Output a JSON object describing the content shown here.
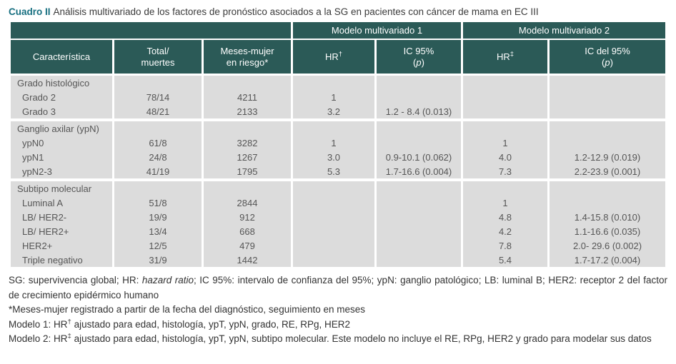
{
  "caption": {
    "label": "Cuadro II",
    "text": "Análisis multivariado de los factores de pronóstico asociados a la SG en pacientes con cáncer de mama en EC III"
  },
  "colors": {
    "header_bg": "#2B5A57",
    "caption_accent": "#176F80",
    "cell_bg": "#DCDCDC",
    "cell_text": "#565656",
    "note_text": "#333333"
  },
  "table": {
    "group_headers": [
      {
        "label": "",
        "span": 3
      },
      {
        "label": "Modelo multivariado 1",
        "span": 2
      },
      {
        "label": "Modelo multivariado 2",
        "span": 2
      }
    ],
    "columns": [
      {
        "name": "caracteristica",
        "lines": [
          [
            {
              "t": "Característica"
            }
          ]
        ]
      },
      {
        "name": "total-muertes",
        "lines": [
          [
            {
              "t": "Total/"
            }
          ],
          [
            {
              "t": "muertes"
            }
          ]
        ]
      },
      {
        "name": "meses-mujer-en-riesgo",
        "lines": [
          [
            {
              "t": "Meses-mujer"
            }
          ],
          [
            {
              "t": "en riesgo*"
            }
          ]
        ]
      },
      {
        "name": "hr-modelo-1",
        "lines": [
          [
            {
              "t": "HR"
            },
            {
              "t": "†",
              "sup": true
            }
          ]
        ]
      },
      {
        "name": "ic95-modelo-1",
        "lines": [
          [
            {
              "t": "IC 95%"
            }
          ],
          [
            {
              "t": "("
            },
            {
              "t": "p",
              "i": true
            },
            {
              "t": ")"
            }
          ]
        ]
      },
      {
        "name": "hr-modelo-2",
        "lines": [
          [
            {
              "t": "HR"
            },
            {
              "t": "‡",
              "sup": true
            }
          ]
        ]
      },
      {
        "name": "ic95-modelo-2",
        "lines": [
          [
            {
              "t": "IC del 95%"
            }
          ],
          [
            {
              "t": "("
            },
            {
              "t": "p",
              "i": true
            },
            {
              "t": ")"
            }
          ]
        ]
      }
    ],
    "sections": [
      {
        "title": "Grado histológico",
        "rows": [
          {
            "cells": [
              "Grado 2",
              "78/14",
              "4211",
              "1",
              "",
              "",
              ""
            ]
          },
          {
            "cells": [
              "Grado 3",
              "48/21",
              "2133",
              "3.2",
              "1.2 - 8.4 (0.013)",
              "",
              ""
            ]
          }
        ]
      },
      {
        "title": "Ganglio axilar (ypN)",
        "rows": [
          {
            "cells": [
              "ypN0",
              "61/8",
              "3282",
              "1",
              "",
              "1",
              ""
            ]
          },
          {
            "cells": [
              "ypN1",
              "24/8",
              "1267",
              "3.0",
              "0.9-10.1 (0.062)",
              "4.0",
              "1.2-12.9 (0.019)"
            ]
          },
          {
            "cells": [
              "ypN2-3",
              "41/19",
              "1795",
              "5.3",
              "1.7-16.6 (0.004)",
              "7.3",
              "2.2-23.9 (0.001)"
            ]
          }
        ]
      },
      {
        "title": "Subtipo molecular",
        "rows": [
          {
            "cells": [
              "Luminal A",
              "51/8",
              "2844",
              "",
              "",
              "1",
              ""
            ]
          },
          {
            "cells": [
              "LB/ HER2-",
              "19/9",
              "912",
              "",
              "",
              "4.8",
              "1.4-15.8 (0.010)"
            ]
          },
          {
            "cells": [
              "LB/ HER2+",
              "13/4",
              "668",
              "",
              "",
              "4.2",
              "1.1-16.6 (0.035)"
            ]
          },
          {
            "cells": [
              "HER2+",
              "12/5",
              "479",
              "",
              "",
              "7.8",
              "2.0- 29.6 (0.002)"
            ]
          },
          {
            "cells": [
              "Triple negativo",
              "31/9",
              "1442",
              "",
              "",
              "5.4",
              "1.7-17.2 (0.004)"
            ]
          }
        ]
      }
    ]
  },
  "notes": [
    {
      "justify": true,
      "segments": [
        {
          "t": "SG: supervivencia global; HR: "
        },
        {
          "t": "hazard ratio",
          "i": true
        },
        {
          "t": "; IC 95%: intervalo de confianza del 95%; ypN: ganglio patológico; LB: luminal B; HER2: receptor 2 del factor de crecimiento epidérmico humano"
        }
      ]
    },
    {
      "segments": [
        {
          "t": "*Meses-mujer registrado a partir de la fecha del diagnóstico, seguimiento en meses"
        }
      ]
    },
    {
      "segments": [
        {
          "t": "Modelo 1: HR"
        },
        {
          "t": "†",
          "sup": true
        },
        {
          "t": " ajustado para edad, histología, ypT, ypN, grado, RE, RPg, HER2"
        }
      ]
    },
    {
      "justify": true,
      "segments": [
        {
          "t": "Modelo 2: HR"
        },
        {
          "t": "‡",
          "sup": true
        },
        {
          "t": " ajustado para edad, histología, ypT, ypN, subtipo molecular. Este modelo no incluye el RE, RPg, HER2 y grado para modelar sus datos"
        }
      ]
    }
  ]
}
